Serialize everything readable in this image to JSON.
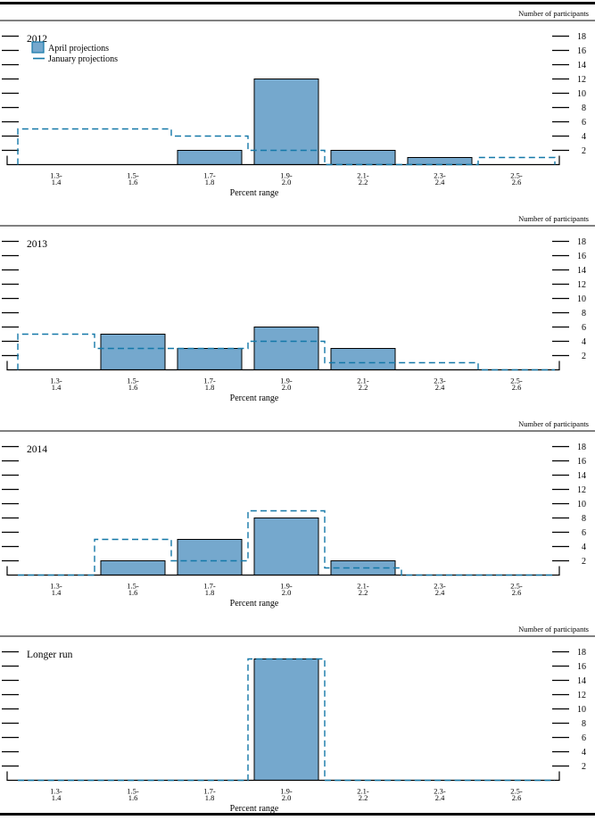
{
  "page": {
    "y_axis_title": "Number of participants",
    "x_axis_title": "Percent range",
    "legend": {
      "april_label": "April projections",
      "january_label": "January projections"
    },
    "colors": {
      "bar_fill": "#75a8cd",
      "bar_stroke": "#000000",
      "dashed_line": "#1478a8",
      "rule": "#000000",
      "text": "#000000"
    },
    "y_ticks": [
      2,
      4,
      6,
      8,
      10,
      12,
      14,
      16,
      18
    ]
  },
  "chart_data": [
    {
      "type": "bar",
      "title": "2012",
      "categories": [
        "1.3-1.4",
        "1.5-1.6",
        "1.7-1.8",
        "1.9-2.0",
        "2.1-2.2",
        "2.3-2.4",
        "2.5-2.6"
      ],
      "series": [
        {
          "name": "April projections",
          "style": "bar",
          "values": [
            0,
            0,
            2,
            12,
            2,
            1,
            0
          ]
        },
        {
          "name": "January projections",
          "style": "dashed-step",
          "values": [
            5,
            5,
            4,
            2,
            0,
            0,
            1
          ]
        }
      ],
      "xlabel": "Percent range",
      "ylabel": "Number of participants",
      "ylim": [
        0,
        20
      ],
      "grid": false,
      "legend_position": "top-left",
      "show_legend": true
    },
    {
      "type": "bar",
      "title": "2013",
      "categories": [
        "1.3-1.4",
        "1.5-1.6",
        "1.7-1.8",
        "1.9-2.0",
        "2.1-2.2",
        "2.3-2.4",
        "2.5-2.6"
      ],
      "series": [
        {
          "name": "April projections",
          "style": "bar",
          "values": [
            0,
            5,
            3,
            6,
            3,
            0,
            0
          ]
        },
        {
          "name": "January projections",
          "style": "dashed-step",
          "values": [
            5,
            3,
            3,
            4,
            1,
            1,
            0
          ]
        }
      ],
      "xlabel": "Percent range",
      "ylabel": "Number of participants",
      "ylim": [
        0,
        20
      ],
      "grid": false,
      "show_legend": false
    },
    {
      "type": "bar",
      "title": "2014",
      "categories": [
        "1.3-1.4",
        "1.5-1.6",
        "1.7-1.8",
        "1.9-2.0",
        "2.1-2.2",
        "2.3-2.4",
        "2.5-2.6"
      ],
      "series": [
        {
          "name": "April projections",
          "style": "bar",
          "values": [
            0,
            2,
            5,
            8,
            2,
            0,
            0
          ]
        },
        {
          "name": "January projections",
          "style": "dashed-step",
          "values": [
            0,
            5,
            2,
            9,
            1,
            0,
            0
          ]
        }
      ],
      "xlabel": "Percent range",
      "ylabel": "Number of participants",
      "ylim": [
        0,
        20
      ],
      "grid": false,
      "show_legend": false
    },
    {
      "type": "bar",
      "title": "Longer run",
      "categories": [
        "1.3-1.4",
        "1.5-1.6",
        "1.7-1.8",
        "1.9-2.0",
        "2.1-2.2",
        "2.3-2.4",
        "2.5-2.6"
      ],
      "series": [
        {
          "name": "April projections",
          "style": "bar",
          "values": [
            0,
            0,
            0,
            17,
            0,
            0,
            0
          ]
        },
        {
          "name": "January projections",
          "style": "dashed-step",
          "values": [
            0,
            0,
            0,
            17,
            0,
            0,
            0
          ]
        }
      ],
      "xlabel": "Percent range",
      "ylabel": "Number of participants",
      "ylim": [
        0,
        20
      ],
      "grid": false,
      "show_legend": false
    }
  ]
}
